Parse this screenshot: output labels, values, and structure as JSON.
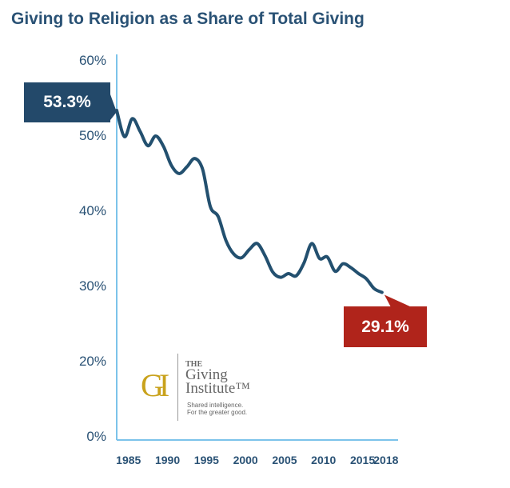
{
  "chart_data": {
    "type": "line",
    "title": "Giving to Religion as a Share of Total Giving",
    "x": [
      1984,
      1985,
      1986,
      1987,
      1988,
      1989,
      1990,
      1991,
      1992,
      1993,
      1994,
      1995,
      1996,
      1997,
      1998,
      1999,
      2000,
      2001,
      2002,
      2003,
      2004,
      2005,
      2006,
      2007,
      2008,
      2009,
      2010,
      2011,
      2012,
      2013,
      2014,
      2015,
      2016,
      2017,
      2018
    ],
    "values": [
      53.3,
      49.8,
      52.2,
      50.5,
      48.6,
      49.9,
      48.5,
      46.0,
      44.9,
      45.8,
      46.9,
      45.5,
      40.5,
      39.2,
      36.0,
      34.2,
      33.7,
      34.8,
      35.6,
      34.0,
      31.8,
      31.1,
      31.6,
      31.3,
      33.0,
      35.6,
      33.6,
      33.8,
      31.9,
      32.9,
      32.4,
      31.6,
      30.9,
      29.6,
      29.1
    ],
    "x_ticks": [
      "1985",
      "1990",
      "1995",
      "2000",
      "2005",
      "2010",
      "2015",
      "2018"
    ],
    "y_ticks": [
      "0%",
      "20%",
      "30%",
      "40%",
      "50%",
      "60%"
    ],
    "ylim": [
      0,
      60
    ],
    "grid": false,
    "line_color": "#23506f",
    "axis_color": "#7cc3ea",
    "annotations": [
      {
        "label": "53.3%",
        "year": 1984,
        "color": "#23496a"
      },
      {
        "label": "29.1%",
        "year": 2018,
        "color": "#b0241b"
      }
    ]
  },
  "logo": {
    "mark": "GI",
    "the": "THE",
    "name_line1": "Giving",
    "name_line2": "Institute™",
    "tagline1": "Shared intelligence.",
    "tagline2": "For the greater good."
  }
}
